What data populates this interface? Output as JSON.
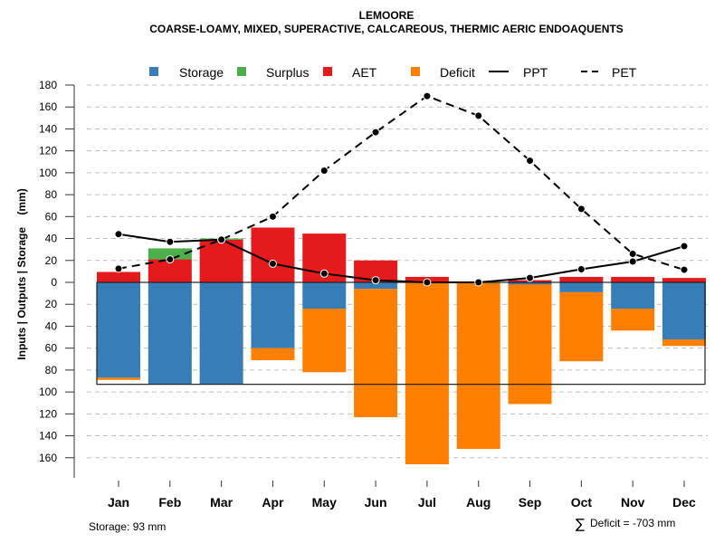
{
  "chart_data": {
    "type": "bar",
    "title": "LEMOORE",
    "subtitle": "COARSE-LOAMY, MIXED, SUPERACTIVE, CALCAREOUS, THERMIC AERIC ENDOAQUENTS",
    "xlabel": "",
    "ylabel": "Inputs | Outputs | Storage    (mm)",
    "ylim": [
      -180,
      180
    ],
    "yticks": [
      180,
      160,
      140,
      120,
      100,
      80,
      60,
      40,
      20,
      0,
      20,
      40,
      60,
      80,
      100,
      120,
      140,
      160
    ],
    "ytick_values": [
      180,
      160,
      140,
      120,
      100,
      80,
      60,
      40,
      20,
      0,
      -20,
      -40,
      -60,
      -80,
      -100,
      -120,
      -140,
      -160
    ],
    "grid": true,
    "legend_position": "top",
    "categories": [
      "Jan",
      "Feb",
      "Mar",
      "Apr",
      "May",
      "Jun",
      "Jul",
      "Aug",
      "Sep",
      "Oct",
      "Nov",
      "Dec"
    ],
    "series": [
      {
        "name": "Storage",
        "kind": "bar",
        "color": "#377EB8",
        "values": [
          -87,
          -93,
          -93,
          -60,
          -24,
          -6,
          0,
          0,
          -2,
          -9,
          -24,
          -52
        ]
      },
      {
        "name": "Surplus",
        "kind": "bar",
        "color": "#4DAF4A",
        "values": [
          0,
          10,
          1,
          0,
          0,
          0,
          0,
          0,
          0,
          0,
          0,
          0
        ]
      },
      {
        "name": "AET",
        "kind": "bar",
        "color": "#E41A1C",
        "values": [
          9.5,
          21,
          39,
          50,
          44.5,
          20,
          5,
          0.5,
          2,
          5,
          5,
          4
        ]
      },
      {
        "name": "Deficit",
        "kind": "bar",
        "color": "#FF7F00",
        "values": [
          -2,
          0,
          0,
          -11,
          -58,
          -117,
          -166,
          -152,
          -109,
          -63,
          -20,
          -6
        ]
      },
      {
        "name": "PPT",
        "kind": "line",
        "style": "solid",
        "color": "#000000",
        "values": [
          44,
          37,
          39,
          17,
          8,
          2,
          0,
          0,
          4,
          12,
          19,
          33
        ]
      },
      {
        "name": "PET",
        "kind": "line",
        "style": "dashed",
        "color": "#000000",
        "values": [
          12.5,
          21,
          39,
          60,
          102,
          137,
          170,
          152,
          111,
          67,
          26,
          11.5
        ]
      }
    ],
    "storage_capacity_mm": 93,
    "annotations": {
      "storage": "Storage: 93 mm",
      "deficit_sum": "Deficit = -703 mm",
      "deficit_sum_symbol": "∑"
    }
  }
}
